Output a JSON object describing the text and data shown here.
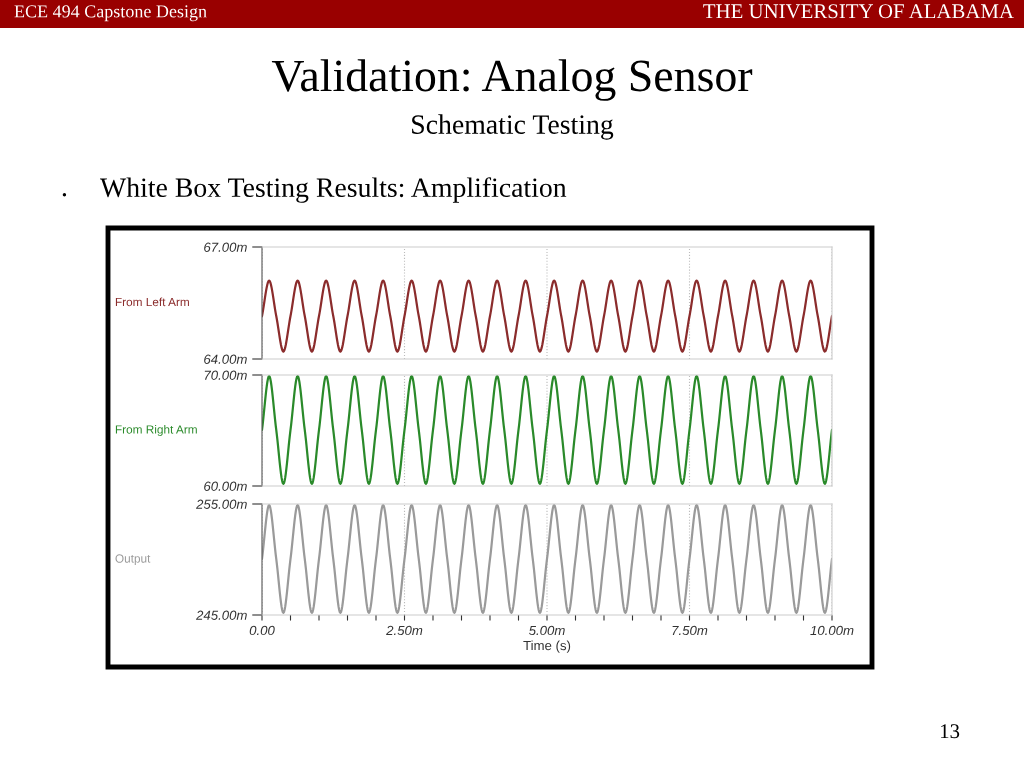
{
  "chart_data": [
    {
      "type": "line",
      "title": "Validation: Analog Sensor",
      "subtitle": "Schematic Testing",
      "annotations": [
        "ECE 494 Capstone Design",
        "THE UNIVERSITY OF ALABAMA",
        "•",
        "White Box Testing Results: Amplification",
        "13"
      ],
      "x": [
        0,
        0.125,
        0.25,
        0.375,
        0.5,
        0.625,
        0.75,
        0.875,
        1,
        1.125,
        1.25,
        1.375,
        1.5,
        1.625,
        1.75,
        1.875,
        2,
        2.125,
        2.25,
        2.375,
        2.5,
        2.625,
        2.75,
        2.875,
        3,
        3.125,
        3.25,
        3.375,
        3.5,
        3.625,
        3.75,
        3.875,
        4,
        4.125,
        4.25,
        4.375,
        4.5,
        4.625,
        4.75,
        4.875,
        5,
        5.125,
        5.25,
        5.375,
        5.5,
        5.625,
        5.75,
        5.875,
        6,
        6.125,
        6.25,
        6.375,
        6.5,
        6.625,
        6.75,
        6.875,
        7,
        7.125,
        7.25,
        7.375,
        7.5,
        7.625,
        7.75,
        7.875,
        8,
        8.125,
        8.25,
        8.375,
        8.5,
        8.625,
        8.75,
        8.875,
        9,
        9.125,
        9.25,
        9.375,
        9.5,
        9.625,
        9.75,
        9.875,
        10
      ],
      "series": [
        {
          "name": "From Left Arm",
          "color": "#8b2c2c",
          "values": [
            65.15,
            66.1,
            65.15,
            64.2,
            65.15,
            66.1,
            65.15,
            64.2,
            65.15,
            66.1,
            65.15,
            64.2,
            65.15,
            66.1,
            65.15,
            64.2,
            65.15,
            66.1,
            65.15,
            64.2,
            65.15,
            66.1,
            65.15,
            64.2,
            65.15,
            66.1,
            65.15,
            64.2,
            65.15,
            66.1,
            65.15,
            64.2,
            65.15,
            66.1,
            65.15,
            64.2,
            65.15,
            66.1,
            65.15,
            64.2,
            65.15,
            66.1,
            65.15,
            64.2,
            65.15,
            66.1,
            65.15,
            64.2,
            65.15,
            66.1,
            65.15,
            64.2,
            65.15,
            66.1,
            65.15,
            64.2,
            65.15,
            66.1,
            65.15,
            64.2,
            65.15,
            66.1,
            65.15,
            64.2,
            65.15,
            66.1,
            65.15,
            64.2,
            65.15,
            66.1,
            65.15,
            64.2,
            65.15,
            66.1,
            65.15,
            64.2,
            65.15,
            66.1,
            65.15,
            64.2,
            65.15
          ]
        }
      ],
      "xlim": [
        0,
        10
      ],
      "xticks": [
        0,
        2.5,
        5,
        7.5,
        10
      ],
      "ylim": [
        64,
        67
      ],
      "yticks": [
        {
          "value": 64,
          "label": "64.00m"
        },
        {
          "value": 67,
          "label": "67.00m"
        }
      ],
      "tick_labels": "y",
      "grid": "x",
      "line_style": "solid"
    },
    {
      "type": "line",
      "x": [
        0,
        0.125,
        0.25,
        0.375,
        0.5,
        0.625,
        0.75,
        0.875,
        1,
        1.125,
        1.25,
        1.375,
        1.5,
        1.625,
        1.75,
        1.875,
        2,
        2.125,
        2.25,
        2.375,
        2.5,
        2.625,
        2.75,
        2.875,
        3,
        3.125,
        3.25,
        3.375,
        3.5,
        3.625,
        3.75,
        3.875,
        4,
        4.125,
        4.25,
        4.375,
        4.5,
        4.625,
        4.75,
        4.875,
        5,
        5.125,
        5.25,
        5.375,
        5.5,
        5.625,
        5.75,
        5.875,
        6,
        6.125,
        6.25,
        6.375,
        6.5,
        6.625,
        6.75,
        6.875,
        7,
        7.125,
        7.25,
        7.375,
        7.5,
        7.625,
        7.75,
        7.875,
        8,
        8.125,
        8.25,
        8.375,
        8.5,
        8.625,
        8.75,
        8.875,
        9,
        9.125,
        9.25,
        9.375,
        9.5,
        9.625,
        9.75,
        9.875,
        10
      ],
      "series": [
        {
          "name": "From Right Arm",
          "color": "#2a8a2a",
          "values": [
            65.05,
            69.9,
            65.05,
            60.2,
            65.05,
            69.9,
            65.05,
            60.2,
            65.05,
            69.9,
            65.05,
            60.2,
            65.05,
            69.9,
            65.05,
            60.2,
            65.05,
            69.9,
            65.05,
            60.2,
            65.05,
            69.9,
            65.05,
            60.2,
            65.05,
            69.9,
            65.05,
            60.2,
            65.05,
            69.9,
            65.05,
            60.2,
            65.05,
            69.9,
            65.05,
            60.2,
            65.05,
            69.9,
            65.05,
            60.2,
            65.05,
            69.9,
            65.05,
            60.2,
            65.05,
            69.9,
            65.05,
            60.2,
            65.05,
            69.9,
            65.05,
            60.2,
            65.05,
            69.9,
            65.05,
            60.2,
            65.05,
            69.9,
            65.05,
            60.2,
            65.05,
            69.9,
            65.05,
            60.2,
            65.05,
            69.9,
            65.05,
            60.2,
            65.05,
            69.9,
            65.05,
            60.2,
            65.05,
            69.9,
            65.05,
            60.2,
            65.05,
            69.9,
            65.05,
            60.2,
            65.05
          ]
        }
      ],
      "xlim": [
        0,
        10
      ],
      "xticks": [
        0,
        2.5,
        5,
        7.5,
        10
      ],
      "ylim": [
        60,
        70
      ],
      "yticks": [
        {
          "value": 60,
          "label": "60.00m"
        },
        {
          "value": 70,
          "label": "70.00m"
        }
      ],
      "tick_labels": "y",
      "grid": "x",
      "line_style": "solid"
    },
    {
      "type": "line",
      "xlabel": "Time (s)",
      "x": [
        0,
        0.125,
        0.25,
        0.375,
        0.5,
        0.625,
        0.75,
        0.875,
        1,
        1.125,
        1.25,
        1.375,
        1.5,
        1.625,
        1.75,
        1.875,
        2,
        2.125,
        2.25,
        2.375,
        2.5,
        2.625,
        2.75,
        2.875,
        3,
        3.125,
        3.25,
        3.375,
        3.5,
        3.625,
        3.75,
        3.875,
        4,
        4.125,
        4.25,
        4.375,
        4.5,
        4.625,
        4.75,
        4.875,
        5,
        5.125,
        5.25,
        5.375,
        5.5,
        5.625,
        5.75,
        5.875,
        6,
        6.125,
        6.25,
        6.375,
        6.5,
        6.625,
        6.75,
        6.875,
        7,
        7.125,
        7.25,
        7.375,
        7.5,
        7.625,
        7.75,
        7.875,
        8,
        8.125,
        8.25,
        8.375,
        8.5,
        8.625,
        8.75,
        8.875,
        9,
        9.125,
        9.25,
        9.375,
        9.5,
        9.625,
        9.75,
        9.875,
        10
      ],
      "series": [
        {
          "name": "Output",
          "color": "#9a9a9a",
          "values": [
            250.05,
            254.9,
            250.05,
            245.2,
            250.05,
            254.9,
            250.05,
            245.2,
            250.05,
            254.9,
            250.05,
            245.2,
            250.05,
            254.9,
            250.05,
            245.2,
            250.05,
            254.9,
            250.05,
            245.2,
            250.05,
            254.9,
            250.05,
            245.2,
            250.05,
            254.9,
            250.05,
            245.2,
            250.05,
            254.9,
            250.05,
            245.2,
            250.05,
            254.9,
            250.05,
            245.2,
            250.05,
            254.9,
            250.05,
            245.2,
            250.05,
            254.9,
            250.05,
            245.2,
            250.05,
            254.9,
            250.05,
            245.2,
            250.05,
            254.9,
            250.05,
            245.2,
            250.05,
            254.9,
            250.05,
            245.2,
            250.05,
            254.9,
            250.05,
            245.2,
            250.05,
            254.9,
            250.05,
            245.2,
            250.05,
            254.9,
            250.05,
            245.2,
            250.05,
            254.9,
            250.05,
            245.2,
            250.05,
            254.9,
            250.05,
            245.2,
            250.05,
            254.9,
            250.05,
            245.2,
            250.05
          ]
        }
      ],
      "xlim": [
        0,
        10
      ],
      "xticks": [
        {
          "value": 0,
          "label": "0.00"
        },
        {
          "value": 0.5,
          "label": null
        },
        {
          "value": 1,
          "label": null
        },
        {
          "value": 1.5,
          "label": null
        },
        {
          "value": 2,
          "label": null
        },
        {
          "value": 2.5,
          "label": "2.50m"
        },
        {
          "value": 3,
          "label": null
        },
        {
          "value": 3.5,
          "label": null
        },
        {
          "value": 4,
          "label": null
        },
        {
          "value": 4.5,
          "label": null
        },
        {
          "value": 5,
          "label": "5.00m"
        },
        {
          "value": 5.5,
          "label": null
        },
        {
          "value": 6,
          "label": null
        },
        {
          "value": 6.5,
          "label": null
        },
        {
          "value": 7,
          "label": null
        },
        {
          "value": 7.5,
          "label": "7.50m"
        },
        {
          "value": 8,
          "label": null
        },
        {
          "value": 8.5,
          "label": null
        },
        {
          "value": 9,
          "label": null
        },
        {
          "value": 9.5,
          "label": null
        },
        {
          "value": 10,
          "label": "10.00m"
        }
      ],
      "ylim": [
        245,
        255
      ],
      "yticks": [
        {
          "value": 245,
          "label": "245.00m"
        },
        {
          "value": 255,
          "label": "255.00m"
        }
      ],
      "grid": "x",
      "line_style": "solid"
    }
  ]
}
